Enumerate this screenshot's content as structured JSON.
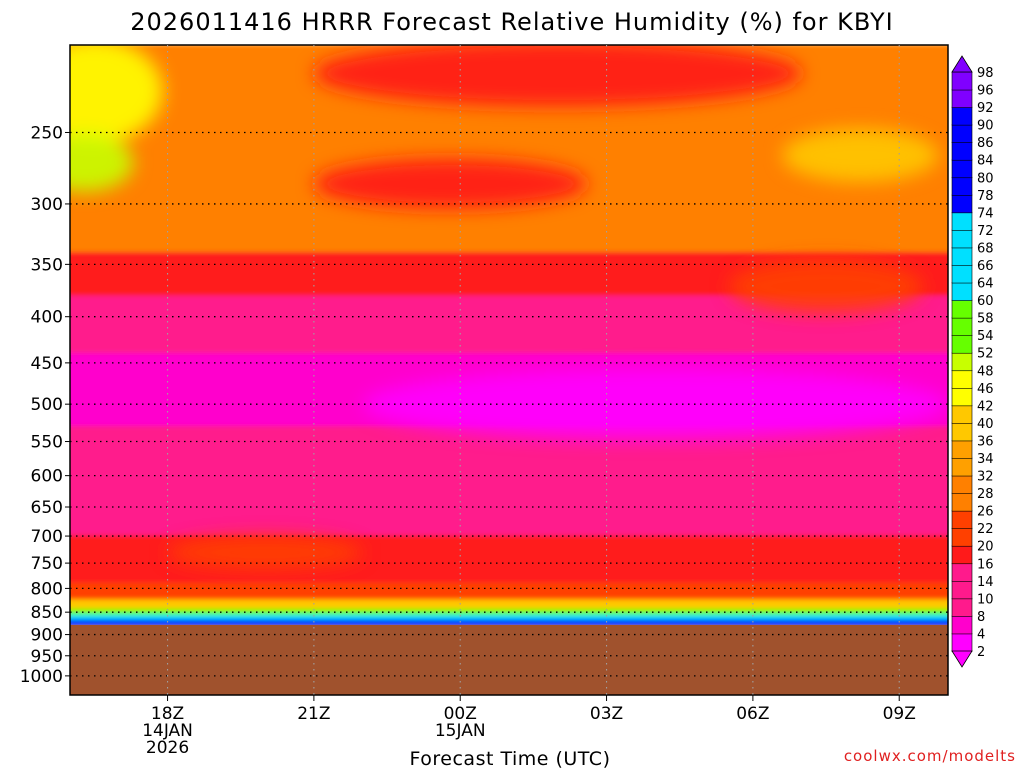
{
  "chart_data": {
    "type": "heatmap",
    "title": "2026011416 HRRR Forecast Relative Humidity (%) for KBYI",
    "xlabel": "Forecast Time (UTC)",
    "credit": "coolwx.com/modelts",
    "ylim": [
      1050,
      200
    ],
    "yscale": "log",
    "y_ticks": [
      250,
      300,
      350,
      400,
      450,
      500,
      550,
      600,
      650,
      700,
      750,
      800,
      850,
      900,
      950,
      1000
    ],
    "xlim": [
      -2,
      16
    ],
    "x_ticks": [
      {
        "x": 0,
        "lines": [
          "18Z",
          "14JAN",
          "2026"
        ]
      },
      {
        "x": 3,
        "lines": [
          "21Z"
        ]
      },
      {
        "x": 6,
        "lines": [
          "00Z",
          "15JAN"
        ]
      },
      {
        "x": 9,
        "lines": [
          "03Z"
        ]
      },
      {
        "x": 12,
        "lines": [
          "06Z"
        ]
      },
      {
        "x": 15,
        "lines": [
          "09Z"
        ]
      }
    ],
    "grid": true,
    "ground_level_hpa": 878,
    "colorbar": {
      "levels": [
        2,
        4,
        8,
        10,
        14,
        16,
        20,
        22,
        26,
        28,
        32,
        34,
        36,
        40,
        42,
        46,
        48,
        52,
        54,
        58,
        60,
        64,
        66,
        68,
        72,
        74,
        78,
        80,
        84,
        86,
        90,
        92,
        96,
        98
      ],
      "colors": {
        "ground": "#a0522d",
        "mag_light": "#ff00ff",
        "mag_mid": "#ff00cc",
        "pink": "#ff1a8c",
        "red": "#ff1a1a",
        "red_orange": "#ff4000",
        "orange": "#ff8000",
        "orange_light": "#ffa000",
        "yellow_orange": "#ffc800",
        "yellow": "#ffff00",
        "yellow_green": "#c8ff00",
        "green": "#66ff00",
        "cyan": "#00e0ff",
        "blue": "#0000ff",
        "violet": "#8000ff"
      }
    },
    "bands": [
      {
        "top": 200,
        "bottom": 245,
        "rh": 28
      },
      {
        "top": 245,
        "bottom": 300,
        "rh": 30
      },
      {
        "top": 300,
        "bottom": 340,
        "rh": 28
      },
      {
        "top": 340,
        "bottom": 380,
        "rh": 20
      },
      {
        "top": 380,
        "bottom": 440,
        "rh": 12
      },
      {
        "top": 440,
        "bottom": 530,
        "rh": 6
      },
      {
        "top": 530,
        "bottom": 600,
        "rh": 10
      },
      {
        "top": 600,
        "bottom": 700,
        "rh": 14
      },
      {
        "top": 700,
        "bottom": 790,
        "rh": 18
      },
      {
        "top": 790,
        "bottom": 825,
        "rh": 26
      },
      {
        "top": 825,
        "bottom": 845,
        "rh": 42
      },
      {
        "top": 845,
        "bottom": 858,
        "rh": 56
      },
      {
        "top": 858,
        "bottom": 868,
        "rh": 72
      },
      {
        "top": 868,
        "bottom": 878,
        "rh": 90
      }
    ],
    "blobs": [
      {
        "x": -1.5,
        "p": 225,
        "rx": 1.4,
        "rp": 30,
        "rh": 46
      },
      {
        "x": -1.7,
        "p": 270,
        "rx": 1.0,
        "rp": 20,
        "rh": 52
      },
      {
        "x": 8.0,
        "p": 215,
        "rx": 5.0,
        "rp": 18,
        "rh": 20
      },
      {
        "x": 5.8,
        "p": 285,
        "rx": 2.8,
        "rp": 18,
        "rh": 20
      },
      {
        "x": 14.2,
        "p": 265,
        "rx": 1.6,
        "rp": 18,
        "rh": 40
      },
      {
        "x": 13.5,
        "p": 370,
        "rx": 2.0,
        "rp": 25,
        "rh": 22
      },
      {
        "x": 10.0,
        "p": 500,
        "rx": 6.0,
        "rp": 45,
        "rh": 4
      },
      {
        "x": 2.0,
        "p": 730,
        "rx": 2.0,
        "rp": 30,
        "rh": 22
      }
    ]
  }
}
